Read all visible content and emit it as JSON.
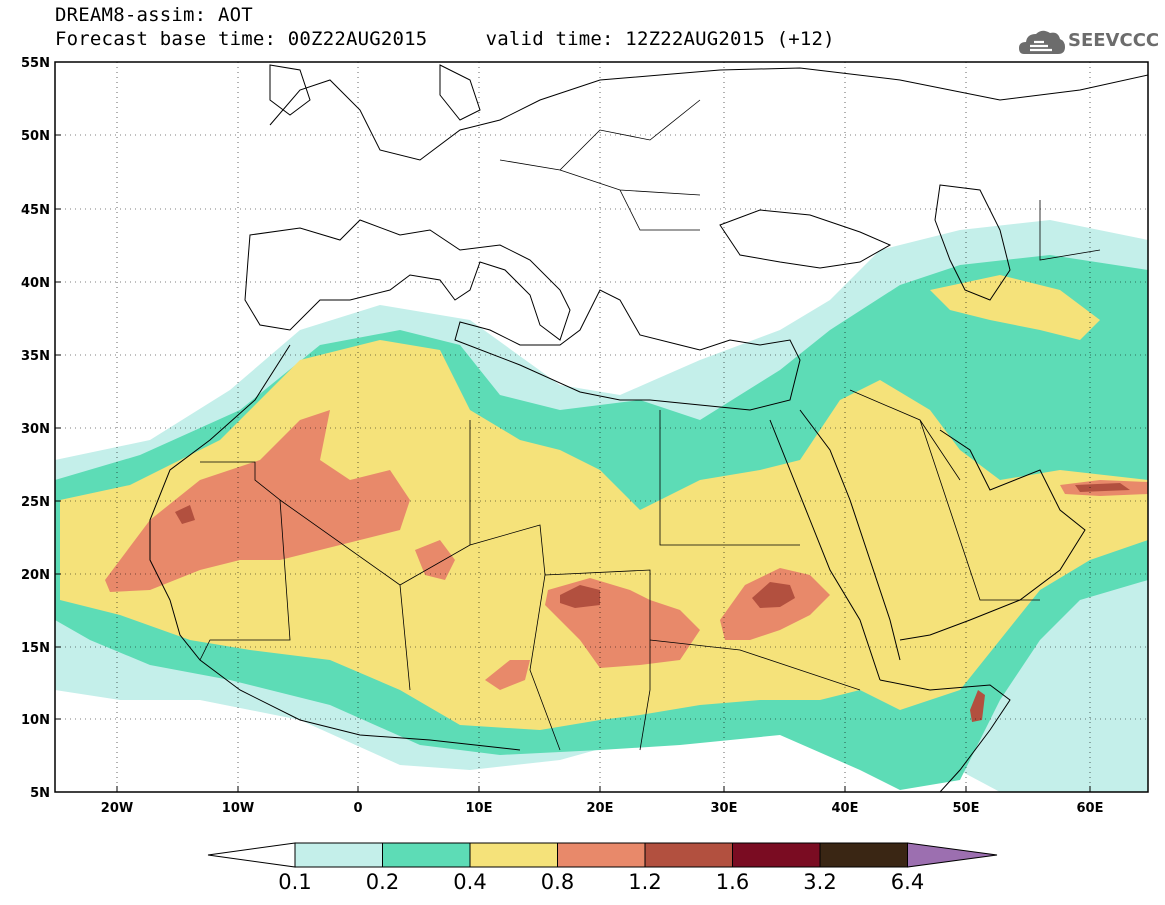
{
  "header": {
    "title_line1": "DREAM8-assim: AOT",
    "title_line2": "Forecast base time: 00Z22AUG2015     valid time: 12Z22AUG2015 (+12)",
    "logo_text": "SEEVCCC",
    "logo_icon": "cloud-icon"
  },
  "map": {
    "lat_labels": [
      "55N",
      "50N",
      "45N",
      "40N",
      "35N",
      "30N",
      "25N",
      "20N",
      "15N",
      "10N",
      "5N"
    ],
    "lon_labels": [
      "20W",
      "10W",
      "0",
      "10E",
      "20E",
      "30E",
      "40E",
      "50E",
      "60E"
    ],
    "projection": "lat-lon",
    "grid": "dotted"
  },
  "colorbar": {
    "labels": [
      "0.1",
      "0.2",
      "0.4",
      "0.8",
      "1.2",
      "1.6",
      "3.2",
      "6.4"
    ],
    "colors": [
      "#ffffff",
      "#c4efea",
      "#5ddcb6",
      "#f5e27a",
      "#e8896a",
      "#b2503f",
      "#7a0c22",
      "#3a2614",
      "#9c6fb0"
    ]
  }
}
